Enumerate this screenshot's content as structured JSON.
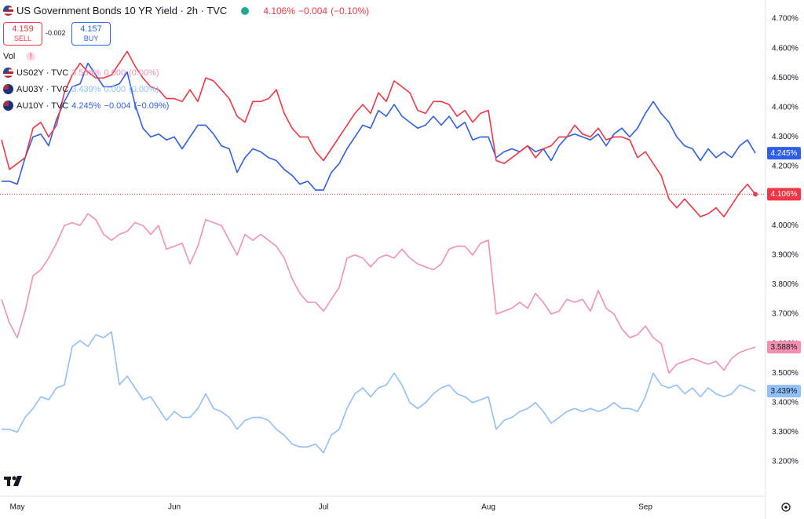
{
  "chart_data": {
    "type": "line",
    "header": {
      "value": "4.106%",
      "change": "−0.004",
      "change_pct": "(−0.10%)"
    },
    "trade": {
      "sell_price": "4.159",
      "sell": "SELL",
      "spread": "-0.002",
      "buy_price": "4.157",
      "buy": "BUY"
    },
    "volume_label": "Vol",
    "categories": [
      null,
      null,
      "May",
      null,
      null,
      null,
      null,
      null,
      null,
      null,
      null,
      null,
      null,
      null,
      null,
      null,
      null,
      null,
      null,
      null,
      null,
      null,
      "Jun",
      null,
      null,
      null,
      null,
      null,
      null,
      null,
      null,
      null,
      null,
      null,
      null,
      null,
      null,
      null,
      null,
      null,
      null,
      "Jul",
      null,
      null,
      null,
      null,
      null,
      null,
      null,
      null,
      null,
      null,
      null,
      null,
      null,
      null,
      null,
      null,
      null,
      null,
      null,
      null,
      "Aug",
      null,
      null,
      null,
      null,
      null,
      null,
      null,
      null,
      null,
      null,
      null,
      null,
      null,
      null,
      null,
      null,
      null,
      null,
      null,
      "Sep",
      null,
      null,
      null,
      null,
      null,
      null,
      null,
      null,
      null,
      null,
      null,
      null,
      null,
      null
    ],
    "series": [
      {
        "name": "US Government Bonds 10 YR Yield · 2h · TVC",
        "color": "#f23645",
        "values": [
          4.29,
          4.19,
          4.21,
          4.23,
          4.33,
          4.35,
          4.3,
          4.34,
          4.45,
          4.51,
          4.55,
          4.52,
          4.5,
          4.5,
          4.51,
          4.55,
          4.59,
          4.54,
          4.5,
          4.47,
          4.46,
          4.43,
          4.43,
          4.42,
          4.46,
          4.42,
          4.5,
          4.49,
          4.46,
          4.43,
          4.37,
          4.35,
          4.42,
          4.42,
          4.43,
          4.46,
          4.38,
          4.33,
          4.3,
          4.3,
          4.25,
          4.22,
          4.26,
          4.3,
          4.34,
          4.38,
          4.41,
          4.38,
          4.45,
          4.42,
          4.49,
          4.47,
          4.45,
          4.39,
          4.38,
          4.42,
          4.42,
          4.41,
          4.37,
          4.39,
          4.35,
          4.38,
          4.39,
          4.22,
          4.21,
          4.23,
          4.25,
          4.27,
          4.23,
          4.26,
          4.27,
          4.3,
          4.3,
          4.34,
          4.31,
          4.3,
          4.33,
          4.29,
          4.3,
          4.3,
          4.29,
          4.23,
          4.25,
          4.21,
          4.17,
          4.09,
          4.06,
          4.09,
          4.06,
          4.03,
          4.04,
          4.06,
          4.03,
          4.07,
          4.11,
          4.14,
          4.106
        ]
      },
      {
        "name": "US02Y · TVC",
        "color": "#f48fb1",
        "legend_value": "3.588%",
        "legend_change": "0.000",
        "legend_change_pct": "(0.00%)",
        "values": [
          3.75,
          3.67,
          3.62,
          3.71,
          3.83,
          3.85,
          3.89,
          3.94,
          4.0,
          4.01,
          4.0,
          4.04,
          4.02,
          3.97,
          3.95,
          3.97,
          3.98,
          4.01,
          4.0,
          3.97,
          4.0,
          3.92,
          3.93,
          3.94,
          3.87,
          3.93,
          4.02,
          4.01,
          4.0,
          3.95,
          3.9,
          3.97,
          3.95,
          3.97,
          3.95,
          3.93,
          3.89,
          3.82,
          3.77,
          3.74,
          3.74,
          3.71,
          3.75,
          3.79,
          3.89,
          3.9,
          3.89,
          3.86,
          3.89,
          3.9,
          3.89,
          3.92,
          3.89,
          3.87,
          3.86,
          3.85,
          3.87,
          3.92,
          3.93,
          3.93,
          3.9,
          3.94,
          3.95,
          3.7,
          3.71,
          3.72,
          3.74,
          3.72,
          3.77,
          3.74,
          3.7,
          3.71,
          3.75,
          3.74,
          3.75,
          3.71,
          3.78,
          3.72,
          3.7,
          3.65,
          3.62,
          3.63,
          3.66,
          3.62,
          3.6,
          3.5,
          3.53,
          3.54,
          3.55,
          3.54,
          3.53,
          3.54,
          3.51,
          3.55,
          3.57,
          3.58,
          3.588
        ]
      },
      {
        "name": "AU03Y · TVC",
        "color": "#90bff9",
        "legend_value": "3.439%",
        "legend_change": "0.000",
        "legend_change_pct": "(0.00%)",
        "values": [
          3.31,
          3.31,
          3.3,
          3.35,
          3.38,
          3.42,
          3.41,
          3.45,
          3.46,
          3.59,
          3.61,
          3.59,
          3.63,
          3.62,
          3.64,
          3.46,
          3.49,
          3.45,
          3.41,
          3.42,
          3.38,
          3.34,
          3.37,
          3.35,
          3.35,
          3.38,
          3.43,
          3.38,
          3.37,
          3.35,
          3.31,
          3.34,
          3.35,
          3.35,
          3.34,
          3.31,
          3.29,
          3.26,
          3.25,
          3.25,
          3.26,
          3.23,
          3.29,
          3.31,
          3.38,
          3.43,
          3.45,
          3.42,
          3.45,
          3.46,
          3.5,
          3.46,
          3.4,
          3.38,
          3.4,
          3.43,
          3.45,
          3.46,
          3.43,
          3.42,
          3.4,
          3.41,
          3.42,
          3.31,
          3.34,
          3.35,
          3.37,
          3.38,
          3.4,
          3.37,
          3.33,
          3.35,
          3.37,
          3.38,
          3.37,
          3.38,
          3.37,
          3.38,
          3.4,
          3.38,
          3.38,
          3.37,
          3.42,
          3.5,
          3.46,
          3.45,
          3.46,
          3.43,
          3.45,
          3.42,
          3.45,
          3.43,
          3.42,
          3.43,
          3.46,
          3.45,
          3.439
        ]
      },
      {
        "name": "AU10Y · TVC",
        "color": "#2f5fe8",
        "legend_value": "4.245%",
        "legend_change": "−0.004",
        "legend_change_pct": "(−0.09%)",
        "values": [
          4.15,
          4.15,
          4.14,
          4.23,
          4.3,
          4.31,
          4.27,
          4.36,
          4.42,
          4.47,
          4.48,
          4.55,
          4.51,
          4.47,
          4.47,
          4.48,
          4.52,
          4.41,
          4.33,
          4.3,
          4.31,
          4.29,
          4.3,
          4.26,
          4.3,
          4.34,
          4.34,
          4.31,
          4.27,
          4.26,
          4.18,
          4.23,
          4.26,
          4.25,
          4.23,
          4.22,
          4.19,
          4.17,
          4.14,
          4.15,
          4.12,
          4.12,
          4.18,
          4.21,
          4.26,
          4.3,
          4.34,
          4.33,
          4.39,
          4.37,
          4.41,
          4.37,
          4.35,
          4.33,
          4.34,
          4.37,
          4.34,
          4.37,
          4.33,
          4.35,
          4.29,
          4.3,
          4.3,
          4.23,
          4.25,
          4.26,
          4.25,
          4.27,
          4.25,
          4.26,
          4.22,
          4.27,
          4.3,
          4.31,
          4.3,
          4.29,
          4.31,
          4.27,
          4.31,
          4.33,
          4.3,
          4.33,
          4.38,
          4.42,
          4.38,
          4.35,
          4.3,
          4.27,
          4.26,
          4.22,
          4.26,
          4.23,
          4.25,
          4.23,
          4.27,
          4.29,
          4.245
        ]
      }
    ],
    "price_labels": [
      {
        "value": 4.245,
        "label": "4.245%",
        "color": "#2f5fe8"
      },
      {
        "value": 4.106,
        "label": "4.106%",
        "color": "#f23645"
      },
      {
        "value": 3.588,
        "label": "3.588%",
        "color": "#f48fb1"
      },
      {
        "value": 3.439,
        "label": "3.439%",
        "color": "#90bff9"
      }
    ],
    "ylim": [
      3.083,
      4.764
    ],
    "yticks": [
      {
        "value": 3.2,
        "label": "3.200%"
      },
      {
        "value": 3.3,
        "label": "3.300%"
      },
      {
        "value": 3.4,
        "label": "3.400%"
      },
      {
        "value": 3.5,
        "label": "3.500%"
      },
      {
        "value": 3.6,
        "label": "3.600%"
      },
      {
        "value": 3.7,
        "label": "3.700%"
      },
      {
        "value": 3.8,
        "label": "3.800%"
      },
      {
        "value": 3.9,
        "label": "3.900%"
      },
      {
        "value": 4.0,
        "label": "4.000%"
      },
      {
        "value": 4.1,
        "label": "4.100%"
      },
      {
        "value": 4.2,
        "label": "4.200%"
      },
      {
        "value": 4.3,
        "label": "4.300%"
      },
      {
        "value": 4.4,
        "label": "4.400%"
      },
      {
        "value": 4.5,
        "label": "4.500%"
      },
      {
        "value": 4.6,
        "label": "4.600%"
      },
      {
        "value": 4.7,
        "label": "4.700%"
      }
    ],
    "grid": false
  }
}
